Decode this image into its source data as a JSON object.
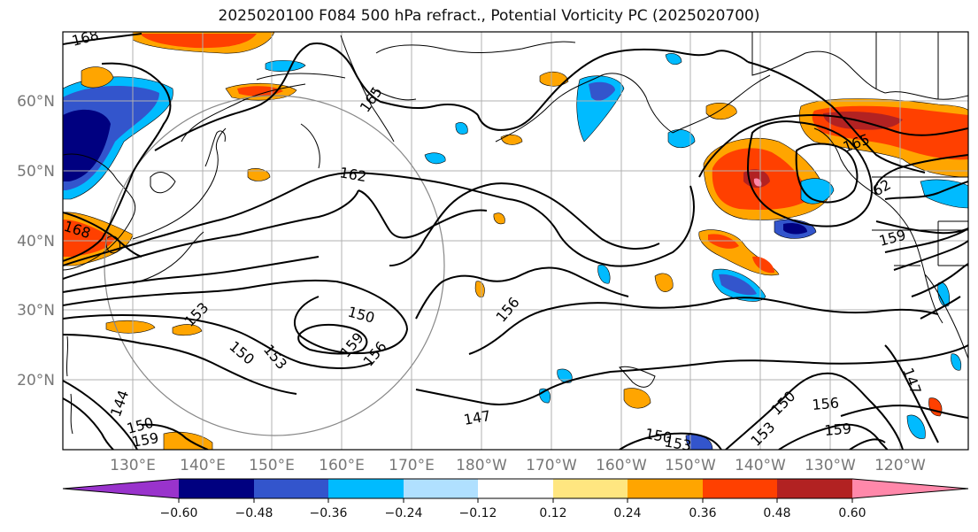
{
  "title": "2025020100 F084 500 hPa refract., Potential Vorticity PC (2025020700)",
  "map": {
    "lat_labels": [
      "60°N",
      "50°N",
      "40°N",
      "30°N",
      "20°N"
    ],
    "lon_labels": [
      "130°E",
      "140°E",
      "150°E",
      "160°E",
      "170°E",
      "180°W",
      "170°W",
      "160°W",
      "150°W",
      "140°W",
      "130°W",
      "120°W"
    ],
    "contour_labels": [
      "168",
      "165",
      "162",
      "168",
      "165",
      "62",
      "159",
      "150",
      "159",
      "156",
      "153",
      "150",
      "153",
      "156",
      "147",
      "150",
      "153",
      "150",
      "156",
      "159",
      "147",
      "144",
      "150",
      "159",
      "153"
    ]
  },
  "colorbar": {
    "ticks": [
      "−0.60",
      "−0.48",
      "−0.36",
      "−0.24",
      "−0.12",
      "0.12",
      "0.24",
      "0.36",
      "0.48",
      "0.60"
    ],
    "colors": [
      "#9933cc",
      "#000080",
      "#3355cc",
      "#00bbff",
      "#b0e0ff",
      "#ffffff",
      "#ffe680",
      "#ffa500",
      "#ff4000",
      "#b22222",
      "#ff88aa"
    ]
  },
  "colors": {
    "positive_light": "#ffe680",
    "positive_mid": "#ffa500",
    "positive_strong": "#ff4000",
    "positive_max": "#b22222",
    "negative_light": "#b0e0ff",
    "negative_mid": "#00bbff",
    "negative_strong": "#3355cc",
    "negative_max": "#000080"
  }
}
